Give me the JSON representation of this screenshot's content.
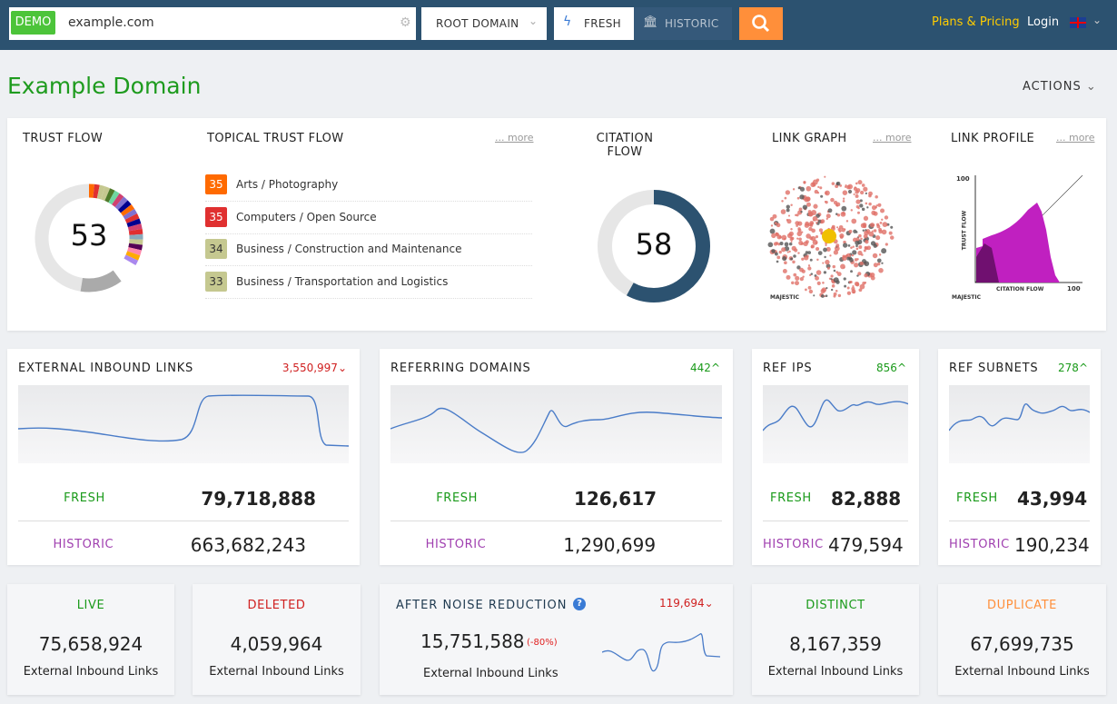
{
  "header": {
    "demo_badge": "DEMO",
    "search_value": "example.com",
    "scope_select": "ROOT DOMAIN",
    "index_fresh": "FRESH",
    "index_historic": "HISTORIC",
    "plans_pricing": "Plans & Pricing",
    "login": "Login",
    "language_flag": "uk-flag-icon",
    "accent": "#ff8f3a"
  },
  "page": {
    "title": "Example Domain",
    "actions": "ACTIONS"
  },
  "overview": {
    "trust_flow": {
      "title": "TRUST FLOW",
      "value": "53"
    },
    "topical": {
      "title": "TOPICAL TRUST FLOW",
      "more": "... more",
      "items": [
        {
          "score": "35",
          "label": "Arts / Photography",
          "color": "#ff6a00"
        },
        {
          "score": "35",
          "label": "Computers / Open Source",
          "color": "#e03030"
        },
        {
          "score": "34",
          "label": "Business / Construction and Maintenance",
          "color": "#c5c890"
        },
        {
          "score": "33",
          "label": "Business / Transportation and Logistics",
          "color": "#c5c890"
        }
      ]
    },
    "citation_flow": {
      "title": "CITATION FLOW",
      "value": "58",
      "fraction": 0.58
    },
    "link_graph": {
      "title": "LINK GRAPH",
      "more": "... more",
      "logo": "MAJESTIC"
    },
    "link_profile": {
      "title": "LINK PROFILE",
      "more": "... more",
      "y_label": "TRUST FLOW",
      "x_label": "CITATION FLOW",
      "y_max": "100",
      "x_max": "100",
      "logo": "MAJESTIC"
    }
  },
  "stats": [
    {
      "title": "EXTERNAL INBOUND LINKS",
      "delta": "3,550,997",
      "delta_dir": "down",
      "fresh_label": "FRESH",
      "fresh": "79,718,888",
      "historic_label": "HISTORIC",
      "historic": "663,682,243"
    },
    {
      "title": "REFERRING DOMAINS",
      "delta": "442",
      "delta_dir": "up",
      "fresh_label": "FRESH",
      "fresh": "126,617",
      "historic_label": "HISTORIC",
      "historic": "1,290,699"
    },
    {
      "title": "REF IPS",
      "delta": "856",
      "delta_dir": "up",
      "fresh_label": "FRESH",
      "fresh": "82,888",
      "historic_label": "HISTORIC",
      "historic": "479,594"
    },
    {
      "title": "REF SUBNETS",
      "delta": "278",
      "delta_dir": "up",
      "fresh_label": "FRESH",
      "fresh": "43,994",
      "historic_label": "HISTORIC",
      "historic": "190,234"
    }
  ],
  "bottom": {
    "live": {
      "label": "LIVE",
      "value": "75,658,924",
      "sub": "External Inbound Links"
    },
    "deleted": {
      "label": "DELETED",
      "value": "4,059,964",
      "sub": "External Inbound Links"
    },
    "noise": {
      "label": "AFTER NOISE REDUCTION",
      "delta": "119,694",
      "value": "15,751,588",
      "pct": "(-80%)",
      "sub": "External Inbound Links"
    },
    "distinct": {
      "label": "DISTINCT",
      "value": "8,167,359",
      "sub": "External Inbound Links"
    },
    "duplicate": {
      "label": "DUPLICATE",
      "value": "67,699,735",
      "sub": "External Inbound Links"
    }
  }
}
